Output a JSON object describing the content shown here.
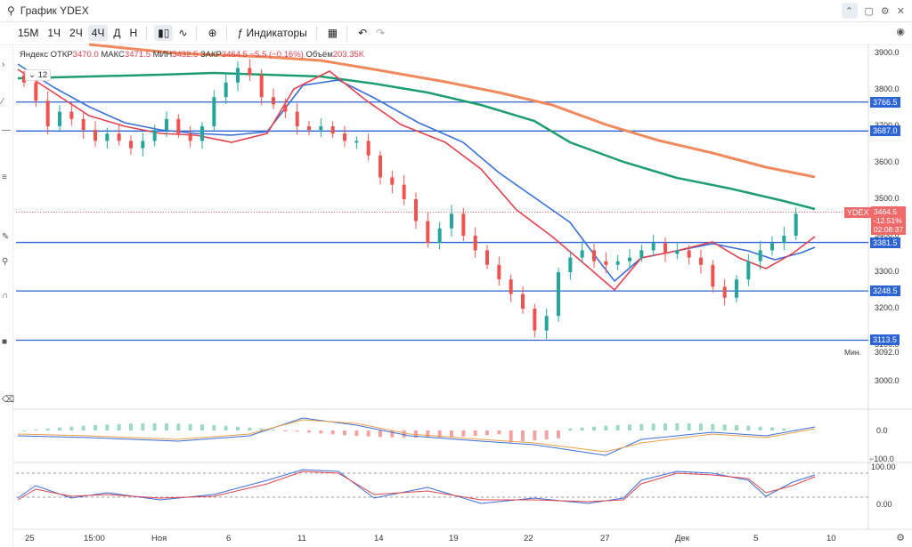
{
  "title": "График  YDEX",
  "toolbar": {
    "timeframes": [
      "15М",
      "1Ч",
      "2Ч",
      "4Ч",
      "Д",
      "Н"
    ],
    "active": "4Ч",
    "indicators_label": "Индикаторы"
  },
  "legend": {
    "source": "Яндекс",
    "open_label": "ОТКР",
    "open": "3470.0",
    "high_label": "МАКС",
    "high": "3471.5",
    "low_label": "МИН",
    "low": "3432.5",
    "close_label": "ЗАКР",
    "close": "3464.5",
    "change": "−5.5 (−0.16%)",
    "volume_label": "Объём",
    "volume": "203.35K",
    "lot": "12"
  },
  "price_axis": [
    "3900.0",
    "3800.0",
    "3700.0",
    "3600.0",
    "3500.0",
    "3400.0",
    "3300.0",
    "3200.0",
    "3100.0",
    "3000.0"
  ],
  "levels": [
    {
      "label": "3766.5",
      "value": 3766.5
    },
    {
      "label": "3687.0",
      "value": 3687.0
    },
    {
      "label": "3381.5",
      "value": 3381.5
    },
    {
      "label": "3248.5",
      "value": 3248.5
    },
    {
      "label": "3113.5",
      "value": 3113.5
    }
  ],
  "ticker_tag": "YDEX",
  "current": {
    "price": "3464.5",
    "change": "-12.51%",
    "timer": "02:08:37"
  },
  "min_label": "Мин.",
  "min_value": "3092.0",
  "macd_axis": [
    "0.0",
    "−100.0"
  ],
  "stoch_axis": [
    "100.00",
    "0.00"
  ],
  "x_labels": [
    "25",
    "15:00",
    "Ноя",
    "6",
    "11",
    "14",
    "19",
    "22",
    "27",
    "Дек",
    "5",
    "10"
  ],
  "colors": {
    "up": "#26a69a",
    "down": "#ef5350",
    "ma_fast": "#e0434f",
    "ma_mid": "#3a6fd8",
    "ma_long": "#1e9e6e",
    "ma_slow": "#f08a5d",
    "level": "#2c63d6"
  },
  "icons": [
    "search-icon",
    "restore-icon",
    "gear-icon",
    "close-icon",
    "candles-icon",
    "line-icon",
    "add-icon",
    "indicators-icon",
    "layout-icon",
    "undo-icon",
    "redo-icon",
    "camera-icon"
  ]
}
